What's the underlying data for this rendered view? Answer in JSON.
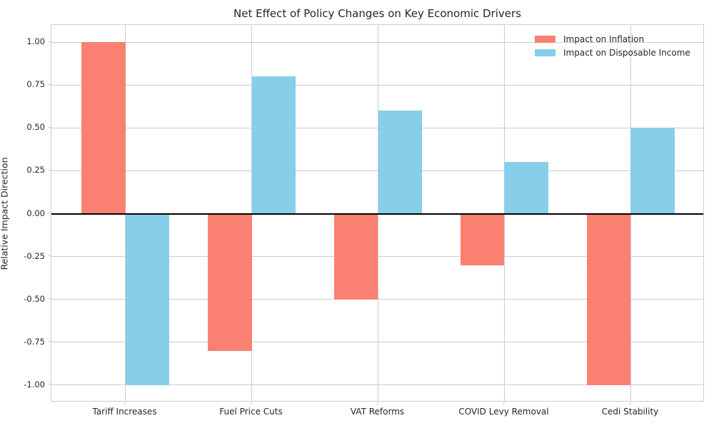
{
  "figure": {
    "title": "Net Effect of Policy Changes on Key Economic Drivers"
  },
  "chart_data": {
    "type": "bar",
    "title": "Net Effect of Policy Changes on Key Economic Drivers",
    "xlabel": "",
    "ylabel": "Relative Impact Direction",
    "categories": [
      "Tariff Increases",
      "Fuel Price Cuts",
      "VAT Reforms",
      "COVID Levy Removal",
      "Cedi Stability"
    ],
    "series": [
      {
        "name": "Impact on Inflation",
        "color": "#FA8072",
        "values": [
          1.0,
          -0.8,
          -0.5,
          -0.3,
          -1.0
        ]
      },
      {
        "name": "Impact on Disposable Income",
        "color": "#87CEEB",
        "values": [
          -1.0,
          0.8,
          0.6,
          0.3,
          0.5
        ]
      }
    ],
    "ylim": [
      -1.1,
      1.1
    ],
    "yticks": [
      1.0,
      0.75,
      0.5,
      0.25,
      0.0,
      -0.25,
      -0.5,
      -0.75,
      -1.0
    ],
    "ytick_labels": [
      "1.00",
      "0.75",
      "0.50",
      "0.25",
      "0.00",
      "-0.25",
      "-0.50",
      "-0.75",
      "-1.00"
    ],
    "bar_width": 0.35,
    "grid": true,
    "zero_line": true,
    "legend_position": "upper right",
    "colors": {
      "grid": "#cccccc",
      "spine": "#cccccc",
      "zero_line": "#000000",
      "text": "#262626",
      "background": "#ffffff"
    }
  }
}
